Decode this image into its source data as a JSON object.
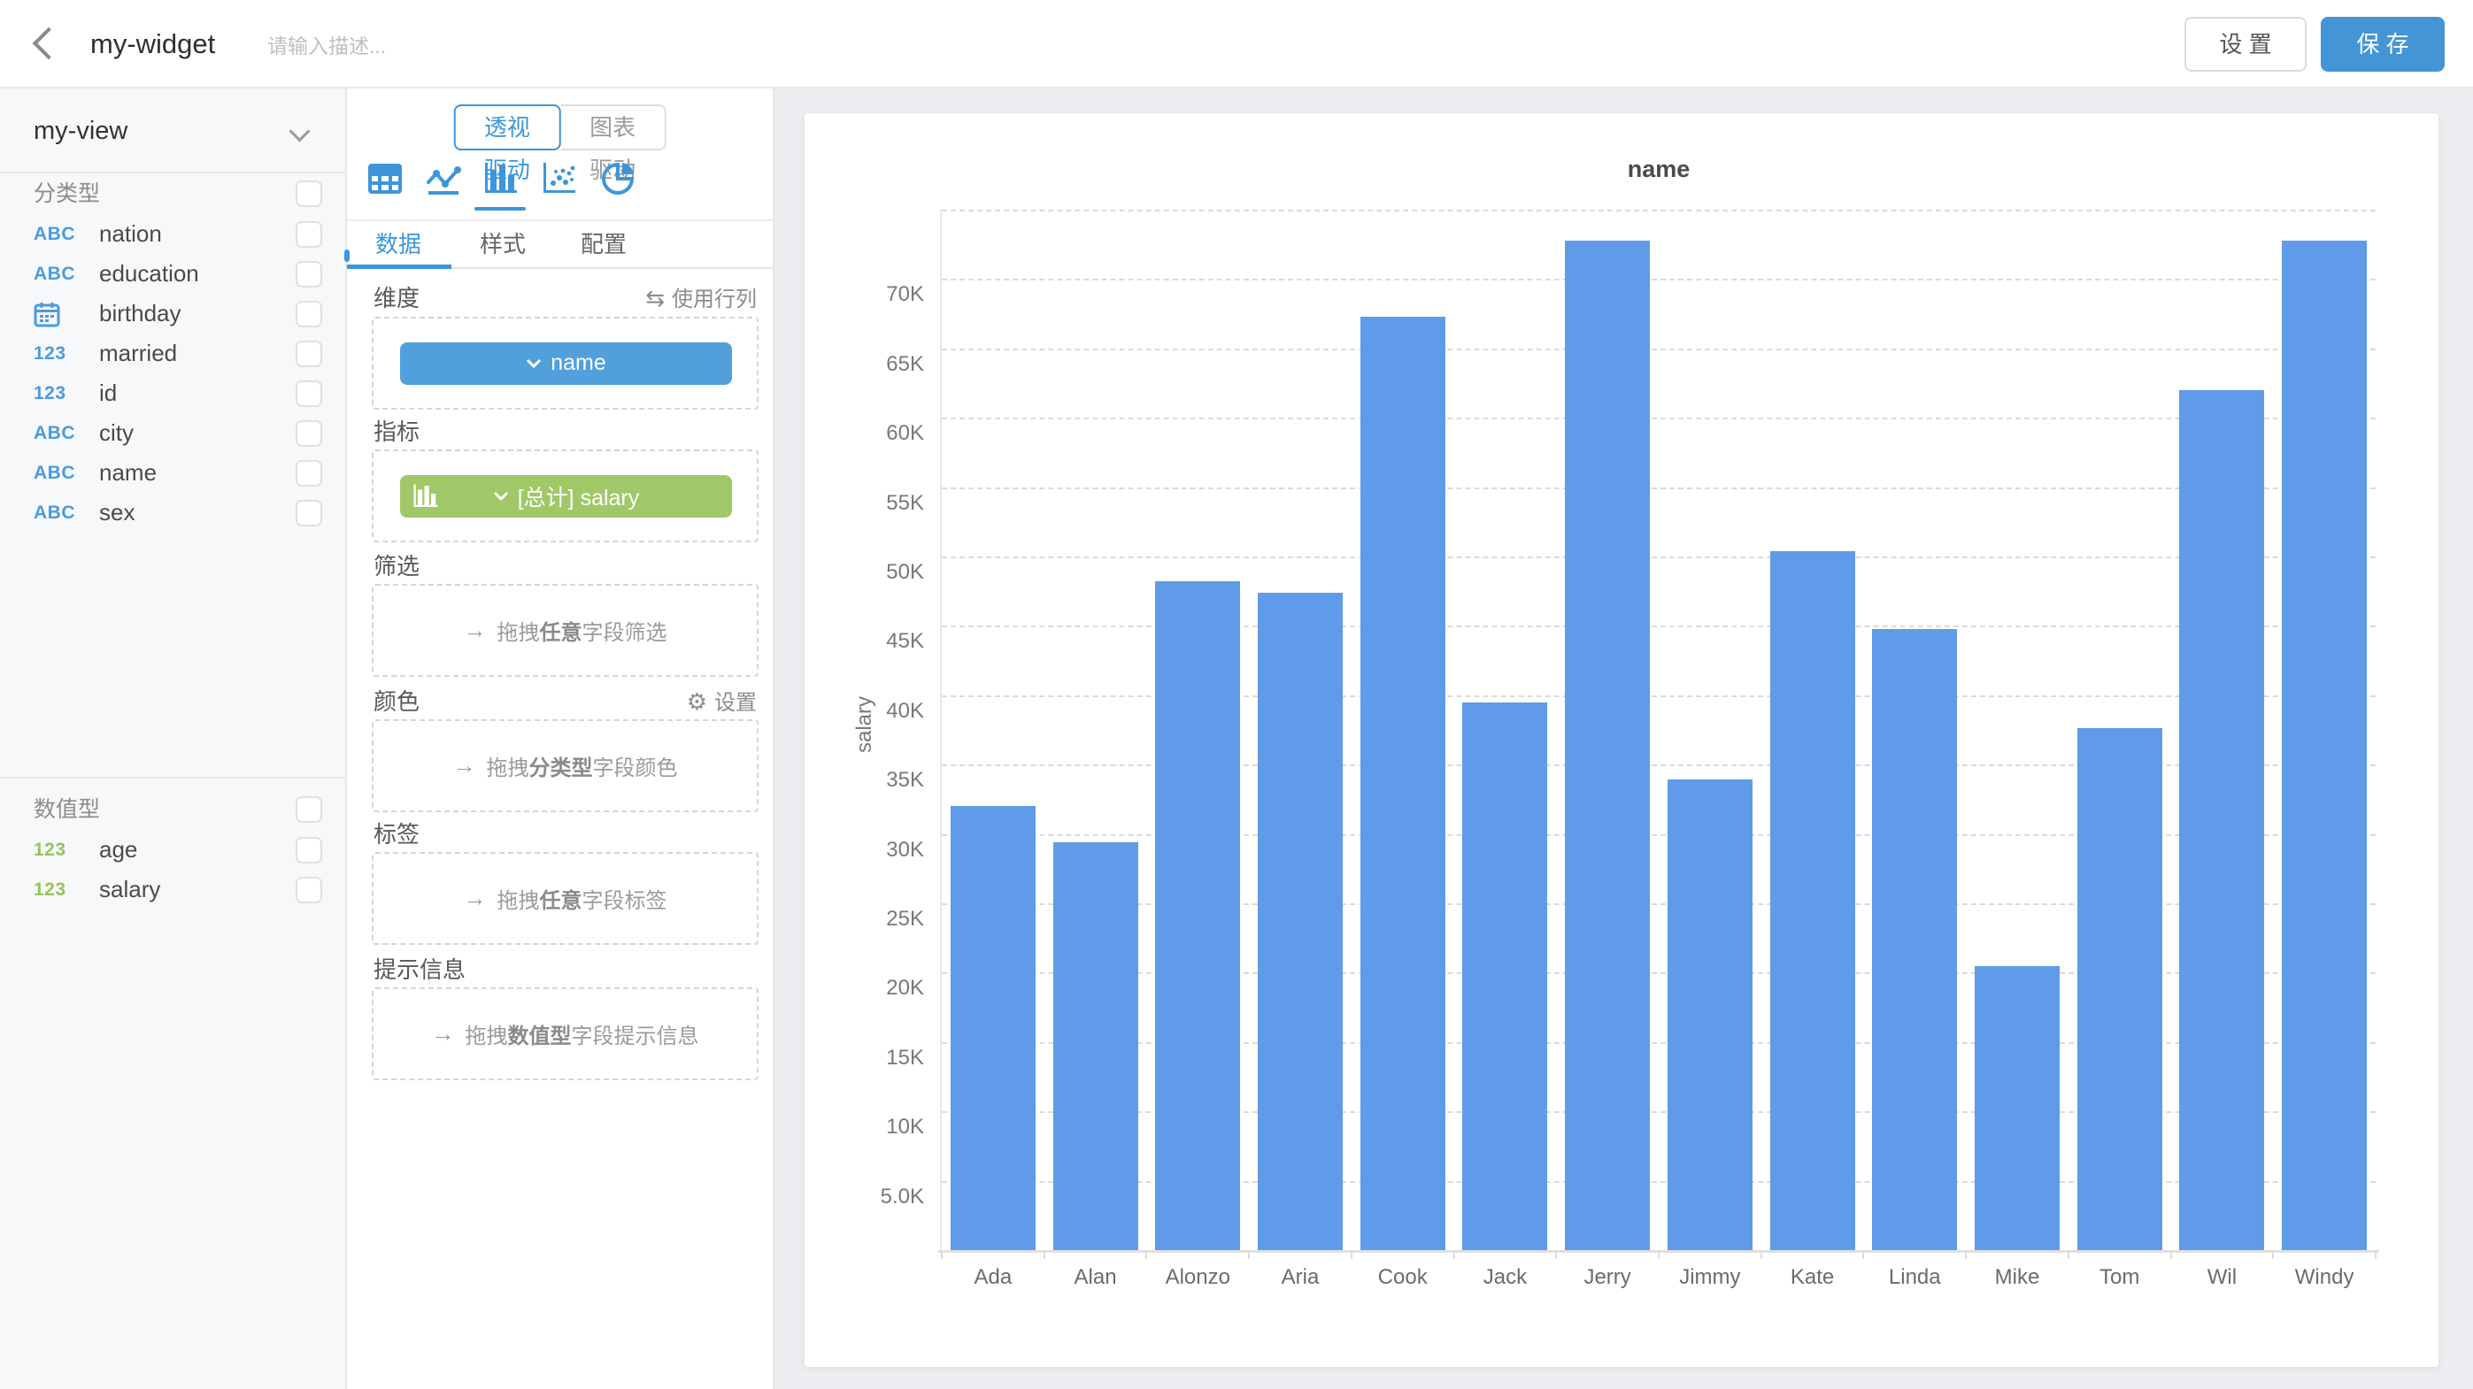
{
  "header": {
    "title": "my-widget",
    "description_placeholder": "请输入描述...",
    "settings_label": "设 置",
    "save_label": "保 存"
  },
  "sidebar": {
    "view_name": "my-view",
    "sections": [
      {
        "title": "分类型",
        "fields": [
          {
            "name": "nation",
            "icon": "abc"
          },
          {
            "name": "education",
            "icon": "abc"
          },
          {
            "name": "birthday",
            "icon": "calendar"
          },
          {
            "name": "married",
            "icon": "123"
          },
          {
            "name": "id",
            "icon": "123"
          },
          {
            "name": "city",
            "icon": "abc"
          },
          {
            "name": "name",
            "icon": "abc"
          },
          {
            "name": "sex",
            "icon": "abc"
          }
        ]
      },
      {
        "title": "数值型",
        "fields": [
          {
            "name": "age",
            "icon": "123-green"
          },
          {
            "name": "salary",
            "icon": "123-green"
          }
        ]
      }
    ]
  },
  "panel": {
    "drivers": [
      "透视驱动",
      "图表驱动"
    ],
    "active_driver_index": 0,
    "chart_types": [
      "table",
      "line",
      "bar",
      "scatter",
      "pie"
    ],
    "active_chart_type": "bar",
    "tabs": [
      "数据",
      "样式",
      "配置"
    ],
    "active_tab_index": 0,
    "sections": {
      "dimension": {
        "label": "维度",
        "action": "使用行列",
        "chip": "name"
      },
      "metric": {
        "label": "指标",
        "chip": "[总计] salary"
      },
      "filter": {
        "label": "筛选",
        "prefix": "拖拽",
        "strong": "任意",
        "suffix": "字段筛选"
      },
      "color": {
        "label": "颜色",
        "action": "设置",
        "prefix": "拖拽",
        "strong": "分类型",
        "suffix": "字段颜色"
      },
      "tag": {
        "label": "标签",
        "prefix": "拖拽",
        "strong": "任意",
        "suffix": "字段标签"
      },
      "tooltip": {
        "label": "提示信息",
        "prefix": "拖拽",
        "strong": "数值型",
        "suffix": "字段提示信息"
      }
    }
  },
  "colors": {
    "accent_blue": "#3D96DB",
    "chip_blue": "#51A0DC",
    "chip_green": "#A0C868",
    "save_blue": "#4495D6",
    "bar_blue": "#5F9BE9",
    "icon_blue": "#4A9BDF",
    "icon_green": "#97C35E"
  },
  "chart_data": {
    "type": "bar",
    "title": "name",
    "xlabel": "",
    "ylabel": "salary",
    "categories": [
      "Ada",
      "Alan",
      "Alonzo",
      "Aria",
      "Cook",
      "Jack",
      "Jerry",
      "Jimmy",
      "Kate",
      "Linda",
      "Mike",
      "Tom",
      "Wil",
      "Windy"
    ],
    "values": [
      32000,
      29400,
      48200,
      47400,
      67300,
      39500,
      72800,
      33900,
      50400,
      44800,
      20500,
      37600,
      62000,
      72800
    ],
    "ylim": [
      0,
      75000
    ],
    "ytick_step": 5000,
    "ytick_labels": [
      "5.0K",
      "10K",
      "15K",
      "20K",
      "25K",
      "30K",
      "35K",
      "40K",
      "45K",
      "50K",
      "55K",
      "60K",
      "65K",
      "70K"
    ],
    "grid": true,
    "legend_position": "none",
    "bar_color": "#5F9BE9"
  }
}
